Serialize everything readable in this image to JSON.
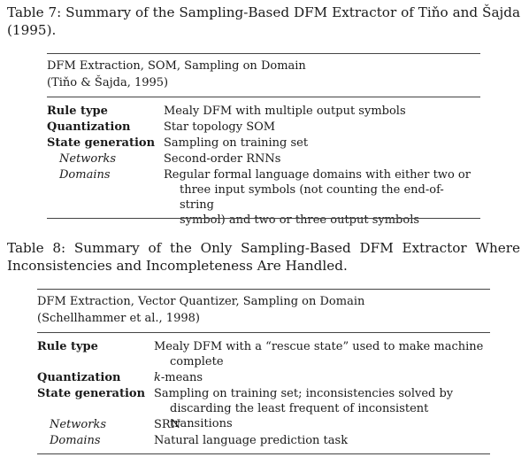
{
  "table7": {
    "caption": "Table 7: Summary of the Sampling-Based DFM Extractor of Tiňo and Šajda (1995).",
    "header_line1": "DFM Extraction, SOM, Sampling on Domain",
    "header_line2": "(Tiňo & Šajda, 1995)",
    "rows": [
      {
        "label": "Rule type",
        "value": "Mealy DFM with multiple output symbols"
      },
      {
        "label": "Quantization",
        "value": "Star topology SOM"
      },
      {
        "label": "State generation",
        "value": "Sampling on training set"
      },
      {
        "label": "Networks",
        "value": "Second-order RNNs"
      },
      {
        "label": "Domains",
        "value_line1": "Regular formal language domains with either two or",
        "value_line2": "three input symbols (not counting the end-of-string",
        "value_line3": "symbol) and two or three output symbols"
      }
    ]
  },
  "table8": {
    "caption": "Table 8: Summary of the Only Sampling-Based DFM Extractor Where Inconsistencies and Incompleteness Are Handled.",
    "header_line1": "DFM Extraction, Vector Quantizer, Sampling on Domain",
    "header_line2": "(Schellhammer et al., 1998)",
    "rows": [
      {
        "label": "Rule type",
        "value_line1": "Mealy DFM with a “rescue state” used to make machine",
        "value_line2": "complete"
      },
      {
        "label": "Quantization",
        "value_italic": "k",
        "value_rest": "-means"
      },
      {
        "label": "State generation",
        "value_line1": "Sampling on training set; inconsistencies solved by",
        "value_line2": "discarding the least frequent of inconsistent transitions"
      },
      {
        "label": "Networks",
        "value": "SRN"
      },
      {
        "label": "Domains",
        "value": "Natural language prediction task"
      }
    ]
  }
}
